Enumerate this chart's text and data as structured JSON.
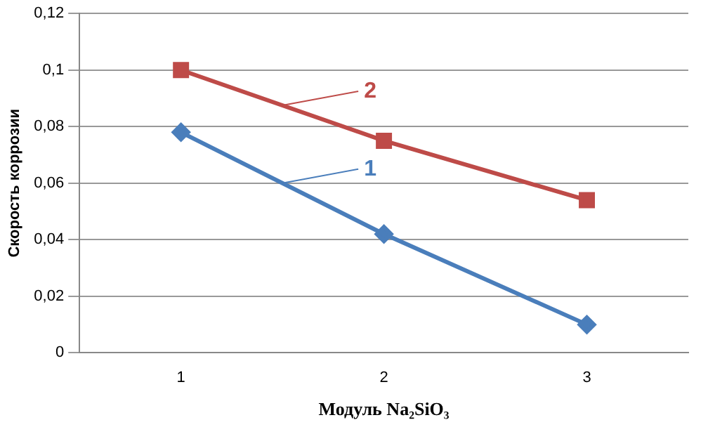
{
  "chart_data": {
    "type": "line",
    "xlabel": "Модуль Na₂SiO₃",
    "ylabel": "Скорость коррозии",
    "categories": [
      "1",
      "2",
      "3"
    ],
    "series": [
      {
        "name": "1",
        "color": "#4a7ebb",
        "values": [
          0.078,
          0.042,
          0.01
        ],
        "marker": "diamond"
      },
      {
        "name": "2",
        "color": "#be4b48",
        "values": [
          0.1,
          0.075,
          0.054
        ],
        "marker": "square"
      }
    ],
    "ylim": [
      0,
      0.12
    ],
    "yticks": [
      {
        "value": 0,
        "label": "0"
      },
      {
        "value": 0.02,
        "label": "0,02"
      },
      {
        "value": 0.04,
        "label": "0,04"
      },
      {
        "value": 0.06,
        "label": "0,06"
      },
      {
        "value": 0.08,
        "label": "0,08"
      },
      {
        "value": 0.1,
        "label": "0,1"
      },
      {
        "value": 0.12,
        "label": "0,12"
      }
    ],
    "grid": "y",
    "legend": "center",
    "line_style": "solid"
  }
}
